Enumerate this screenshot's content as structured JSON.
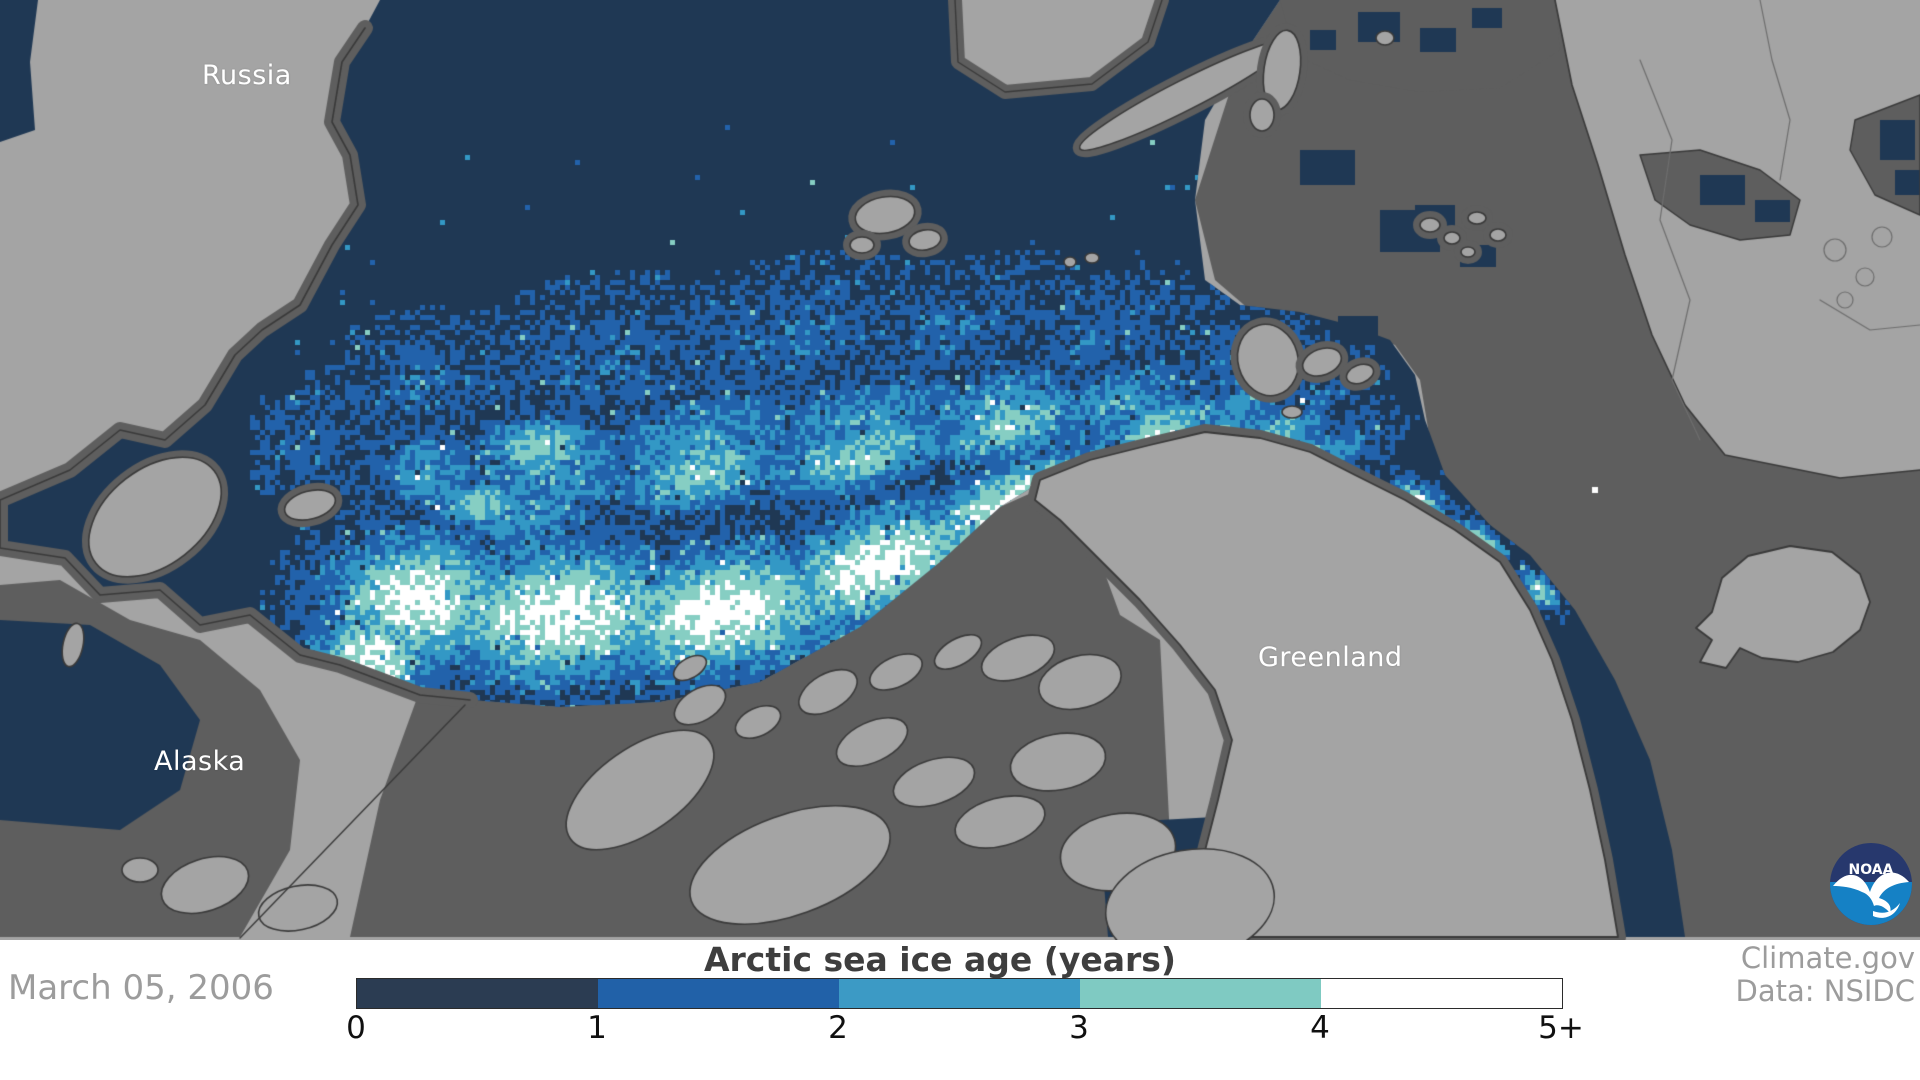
{
  "map": {
    "labels": {
      "russia": "Russia",
      "alaska": "Alaska",
      "greenland": "Greenland"
    },
    "palette": {
      "land": "#a4a4a4",
      "coast_buffer": "#5e5e5e",
      "outline": "#3a3a3a",
      "border_line": "#6e6e6e",
      "ocean": "#1f3854"
    },
    "ice_age_colors": [
      "#1f3854",
      "#2262ab",
      "#3398c5",
      "#86cec3",
      "#ffffff"
    ]
  },
  "legend": {
    "title": "Arctic sea ice age (years)",
    "date": "March 05, 2006",
    "ticks": [
      "0",
      "1",
      "2",
      "3",
      "4",
      "5+"
    ],
    "colors": [
      "#2b3c52",
      "#2161a8",
      "#3c9ac5",
      "#7fcac2",
      "#ffffff"
    ]
  },
  "credits": {
    "source": "Climate.gov",
    "data_source": "Data: NSIDC"
  },
  "logo": {
    "text": "NOAA",
    "navy": "#27386d",
    "blue": "#1581c5",
    "bird": "#ffffff"
  }
}
